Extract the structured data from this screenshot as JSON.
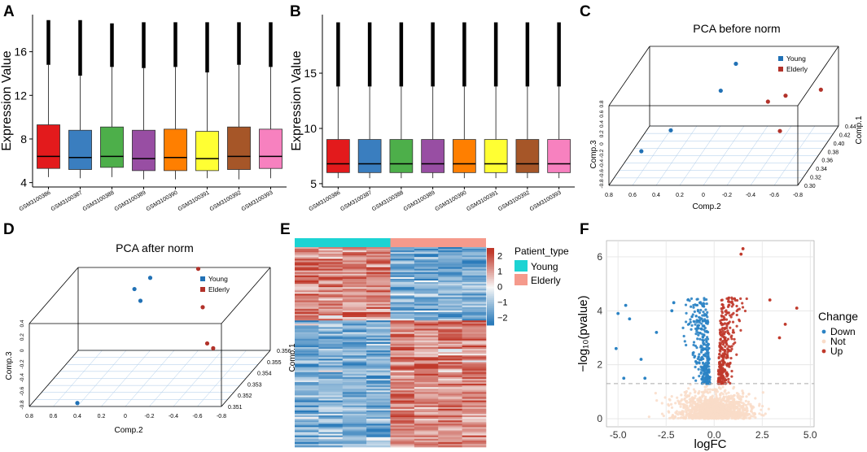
{
  "panel_letters": [
    "A",
    "B",
    "C",
    "D",
    "E",
    "F"
  ],
  "colors": {
    "boxes": [
      "#e31a1c",
      "#3a7ebf",
      "#4daf4a",
      "#984ea3",
      "#ff7f00",
      "#ffff33",
      "#a65628",
      "#f781bf"
    ],
    "young": "#2171b5",
    "elderly": "#b2322a",
    "heat_low": "#2b7bba",
    "heat_mid": "#f7f7f7",
    "heat_high": "#c0392b",
    "young_bar": "#1cd3d3",
    "elderly_bar": "#f59a8c",
    "down": "#2b83c4",
    "not": "#f9dcc8",
    "up": "#c0392b"
  },
  "chart_data": [
    {
      "id": "A",
      "type": "box",
      "ylabel": "Expression Value",
      "ylim": [
        3.6,
        19.4
      ],
      "yticks": [
        4,
        8,
        12,
        16
      ],
      "categories": [
        "GSM3100386",
        "GSM3100387",
        "GSM3100388",
        "GSM3100389",
        "GSM3100390",
        "GSM3100391",
        "GSM3100392",
        "GSM3100393"
      ],
      "boxes": [
        {
          "min": 4.5,
          "q1": 5.3,
          "median": 6.4,
          "q3": 9.3,
          "whisker_high": 14.8,
          "max": 18.9
        },
        {
          "min": 4.4,
          "q1": 5.2,
          "median": 6.3,
          "q3": 8.8,
          "whisker_high": 13.8,
          "max": 18.9
        },
        {
          "min": 4.5,
          "q1": 5.4,
          "median": 6.4,
          "q3": 9.1,
          "whisker_high": 14.6,
          "max": 18.6
        },
        {
          "min": 4.3,
          "q1": 5.1,
          "median": 6.2,
          "q3": 8.8,
          "whisker_high": 14.5,
          "max": 18.7
        },
        {
          "min": 4.3,
          "q1": 5.1,
          "median": 6.3,
          "q3": 8.9,
          "whisker_high": 14.6,
          "max": 18.7
        },
        {
          "min": 4.4,
          "q1": 5.1,
          "median": 6.2,
          "q3": 8.7,
          "whisker_high": 14.1,
          "max": 18.7
        },
        {
          "min": 4.3,
          "q1": 5.2,
          "median": 6.4,
          "q3": 9.1,
          "whisker_high": 14.8,
          "max": 18.7
        },
        {
          "min": 4.4,
          "q1": 5.3,
          "median": 6.4,
          "q3": 8.9,
          "whisker_high": 14.6,
          "max": 18.7
        }
      ]
    },
    {
      "id": "B",
      "type": "box",
      "ylabel": "Expression Value",
      "ylim": [
        4.7,
        20.3
      ],
      "yticks": [
        5,
        10,
        15
      ],
      "categories": [
        "GSM3100386",
        "GSM3100387",
        "GSM3100388",
        "GSM3100389",
        "GSM3100390",
        "GSM3100391",
        "GSM3100392",
        "GSM3100393"
      ],
      "boxes": [
        {
          "min": 5.5,
          "q1": 6.0,
          "median": 6.8,
          "q3": 9.0,
          "whisker_high": 13.8,
          "max": 19.6
        },
        {
          "min": 5.5,
          "q1": 6.0,
          "median": 6.8,
          "q3": 9.0,
          "whisker_high": 13.8,
          "max": 19.6
        },
        {
          "min": 5.5,
          "q1": 6.0,
          "median": 6.8,
          "q3": 9.0,
          "whisker_high": 13.8,
          "max": 19.6
        },
        {
          "min": 5.5,
          "q1": 6.0,
          "median": 6.8,
          "q3": 9.0,
          "whisker_high": 13.8,
          "max": 19.6
        },
        {
          "min": 5.5,
          "q1": 6.0,
          "median": 6.8,
          "q3": 9.0,
          "whisker_high": 13.8,
          "max": 19.6
        },
        {
          "min": 5.5,
          "q1": 6.0,
          "median": 6.8,
          "q3": 9.0,
          "whisker_high": 13.8,
          "max": 19.6
        },
        {
          "min": 5.5,
          "q1": 6.0,
          "median": 6.8,
          "q3": 9.0,
          "whisker_high": 13.8,
          "max": 19.6
        },
        {
          "min": 5.5,
          "q1": 6.0,
          "median": 6.8,
          "q3": 9.0,
          "whisker_high": 13.8,
          "max": 19.6
        }
      ]
    },
    {
      "id": "C",
      "type": "scatter3d",
      "title": "PCA before norm",
      "xlabel": "Comp.2",
      "ylabel": "Comp.3",
      "zlabel": "Comp.1",
      "x_ticks": [
        "0.8",
        "0.6",
        "0.4",
        "0.2",
        "0",
        "-0.2",
        "-0.4",
        "-0.6",
        "-0.8"
      ],
      "z_ticks": [
        "0.30",
        "0.32",
        "0.34",
        "0.36",
        "0.38",
        "0.40",
        "0.42",
        "0.44"
      ],
      "y_ticks": [
        "0.8",
        "0.6",
        "0.4",
        "0.2",
        "0",
        "-0.2",
        "-0.4",
        "-0.6",
        "-0.8"
      ],
      "legend": [
        "Young",
        "Elderly"
      ],
      "points": [
        {
          "group": "Young",
          "x": 0.02,
          "y": 0.62,
          "z": 0.42
        },
        {
          "group": "Young",
          "x": 0.05,
          "y": 0.42,
          "z": 0.38
        },
        {
          "group": "Young",
          "x": 0.35,
          "y": 0.05,
          "z": 0.33
        },
        {
          "group": "Young",
          "x": 0.55,
          "y": -0.2,
          "z": 0.31
        },
        {
          "group": "Elderly",
          "x": -0.35,
          "y": 0.2,
          "z": 0.38
        },
        {
          "group": "Elderly",
          "x": -0.45,
          "y": 0.15,
          "z": 0.4
        },
        {
          "group": "Elderly",
          "x": -0.55,
          "y": -0.05,
          "z": 0.34
        },
        {
          "group": "Elderly",
          "x": -0.7,
          "y": 0.1,
          "z": 0.42
        }
      ]
    },
    {
      "id": "D",
      "type": "scatter3d",
      "title": "PCA after norm",
      "xlabel": "Comp.2",
      "ylabel": "Comp.3",
      "zlabel": "Comp.1",
      "x_ticks": [
        "0.8",
        "0.6",
        "0.4",
        "0.2",
        "0",
        "-0.2",
        "-0.4",
        "-0.6",
        "-0.8"
      ],
      "z_ticks": [
        "0.351",
        "0.352",
        "0.353",
        "0.354",
        "0.355",
        "0.356"
      ],
      "y_ticks": [
        "0.4",
        "0.2",
        "0",
        "-0.2",
        "-0.4",
        "-0.6",
        "-0.8"
      ],
      "legend": [
        "Young",
        "Elderly"
      ],
      "points": [
        {
          "group": "Young",
          "x": 0.25,
          "y": 0.25,
          "z": 0.355
        },
        {
          "group": "Young",
          "x": 0.2,
          "y": 0.25,
          "z": 0.356
        },
        {
          "group": "Young",
          "x": 0.2,
          "y": 0.08,
          "z": 0.355
        },
        {
          "group": "Young",
          "x": 0.4,
          "y": -0.75,
          "z": 0.351
        },
        {
          "group": "Elderly",
          "x": -0.2,
          "y": 0.38,
          "z": 0.356
        },
        {
          "group": "Elderly",
          "x": -0.4,
          "y": 0.15,
          "z": 0.354
        },
        {
          "group": "Elderly",
          "x": -0.6,
          "y": -0.05,
          "z": 0.352
        },
        {
          "group": "Elderly",
          "x": -0.65,
          "y": -0.12,
          "z": 0.352
        }
      ]
    },
    {
      "id": "E",
      "type": "heatmap",
      "columns": 8,
      "legend_title": "Patient_type",
      "groups": [
        "Young",
        "Elderly"
      ],
      "colorbar_ticks": [
        2,
        1,
        0,
        -1,
        -2
      ],
      "colorbar_range": [
        -2.5,
        2.5
      ],
      "row_blocks": [
        {
          "rows": 44,
          "pattern": "up_in_young"
        },
        {
          "rows": 76,
          "pattern": "down_in_young"
        }
      ]
    },
    {
      "id": "F",
      "type": "scatter",
      "xlabel": "logFC",
      "ylabel": "−log₁₀(pvalue)",
      "xlim": [
        -5.6,
        5.2
      ],
      "ylim": [
        -0.3,
        6.6
      ],
      "xticks": [
        -5.0,
        -2.5,
        0.0,
        2.5,
        5.0
      ],
      "xtick_labels": [
        "-5.0",
        "-2.5",
        "0.0",
        "2.5",
        "5.0"
      ],
      "yticks": [
        0,
        2,
        4,
        6
      ],
      "threshold_y": 1.3,
      "legend_title": "Change",
      "legend": [
        "Down",
        "Not",
        "Up"
      ],
      "highlight_points": [
        {
          "group": "Up",
          "x": 1.5,
          "y": 6.3
        },
        {
          "group": "Up",
          "x": 1.4,
          "y": 6.1
        },
        {
          "group": "Up",
          "x": 4.3,
          "y": 4.1
        },
        {
          "group": "Up",
          "x": 3.4,
          "y": 3.0
        },
        {
          "group": "Up",
          "x": 3.7,
          "y": 3.5
        },
        {
          "group": "Up",
          "x": 2.9,
          "y": 4.4
        },
        {
          "group": "Down",
          "x": -2.2,
          "y": 4.0
        },
        {
          "group": "Down",
          "x": -4.6,
          "y": 4.2
        },
        {
          "group": "Down",
          "x": -5.0,
          "y": 3.9
        },
        {
          "group": "Down",
          "x": -4.4,
          "y": 3.7
        },
        {
          "group": "Down",
          "x": -3.0,
          "y": 3.2
        },
        {
          "group": "Down",
          "x": -3.8,
          "y": 2.2
        },
        {
          "group": "Down",
          "x": -5.1,
          "y": 2.6
        },
        {
          "group": "Down",
          "x": -4.7,
          "y": 1.5
        },
        {
          "group": "Down",
          "x": -3.6,
          "y": 1.5
        },
        {
          "group": "Down",
          "x": -2.1,
          "y": 4.3
        }
      ]
    }
  ]
}
